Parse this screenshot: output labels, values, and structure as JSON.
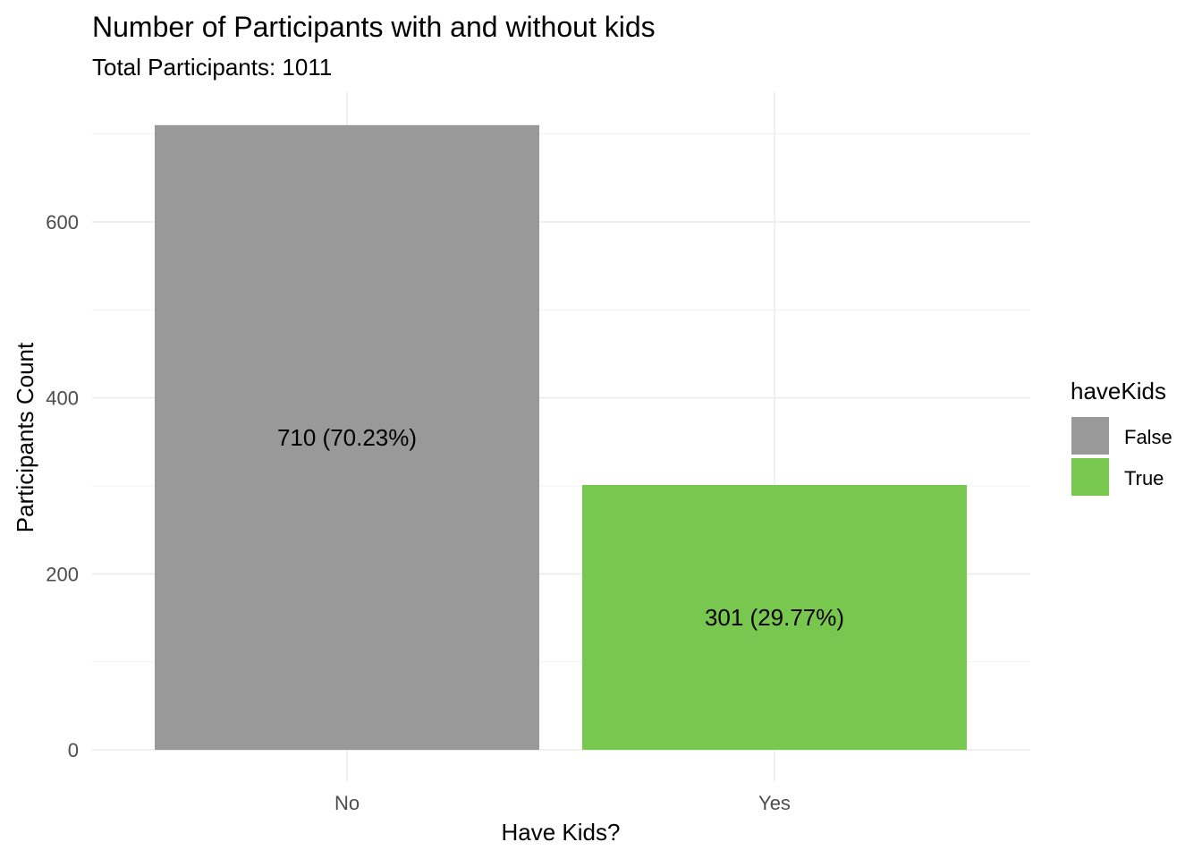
{
  "chart_data": {
    "type": "bar",
    "title": "Number of Participants with and without kids",
    "subtitle": "Total Participants: 1011",
    "xlabel": "Have Kids?",
    "ylabel": "Participants Count",
    "categories": [
      "No",
      "Yes"
    ],
    "values": [
      710,
      301
    ],
    "data_labels": [
      "710 (70.23%)",
      "301 (29.77%)"
    ],
    "fills": [
      "False",
      "True"
    ],
    "colors": [
      "#999999",
      "#78c850"
    ],
    "ylim": [
      0,
      746
    ],
    "y_ticks": [
      0,
      200,
      400,
      600
    ],
    "y_tick_labels": [
      "0",
      "200",
      "400",
      "600"
    ],
    "grid": true,
    "legend": {
      "title": "haveKids",
      "position": "right",
      "entries": [
        {
          "label": "False",
          "color": "#999999"
        },
        {
          "label": "True",
          "color": "#78c850"
        }
      ]
    }
  }
}
